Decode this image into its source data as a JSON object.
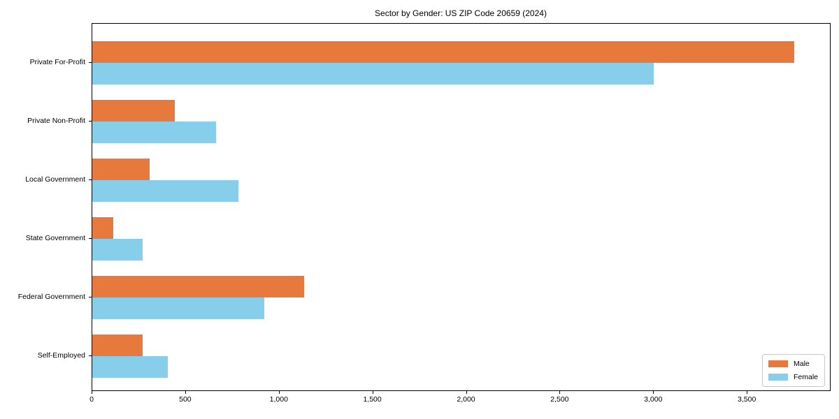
{
  "chart_data": {
    "type": "bar",
    "orientation": "horizontal",
    "title": "Sector by Gender: US ZIP Code 20659 (2024)",
    "xlabel": "",
    "ylabel": "",
    "categories": [
      "Private For-Profit",
      "Private Non-Profit",
      "Local Government",
      "State Government",
      "Federal Government",
      "Self-Employed"
    ],
    "series": [
      {
        "name": "Male",
        "color": "#e8793d",
        "values": [
          3750,
          440,
          305,
          110,
          1130,
          270
        ]
      },
      {
        "name": "Female",
        "color": "#87ceeb",
        "values": [
          3000,
          660,
          780,
          270,
          920,
          405
        ]
      }
    ],
    "xlim": [
      0,
      3940
    ],
    "xticks": [
      0,
      500,
      1000,
      1500,
      2000,
      2500,
      3000,
      3500
    ],
    "xtick_labels": [
      "0",
      "500",
      "1,000",
      "1,500",
      "2,000",
      "2,500",
      "3,000",
      "3,500"
    ],
    "grid": false,
    "legend_position": "lower right",
    "colors": {
      "axis": "#000000",
      "background": "#ffffff",
      "legend_border": "#c8c8c8"
    }
  }
}
